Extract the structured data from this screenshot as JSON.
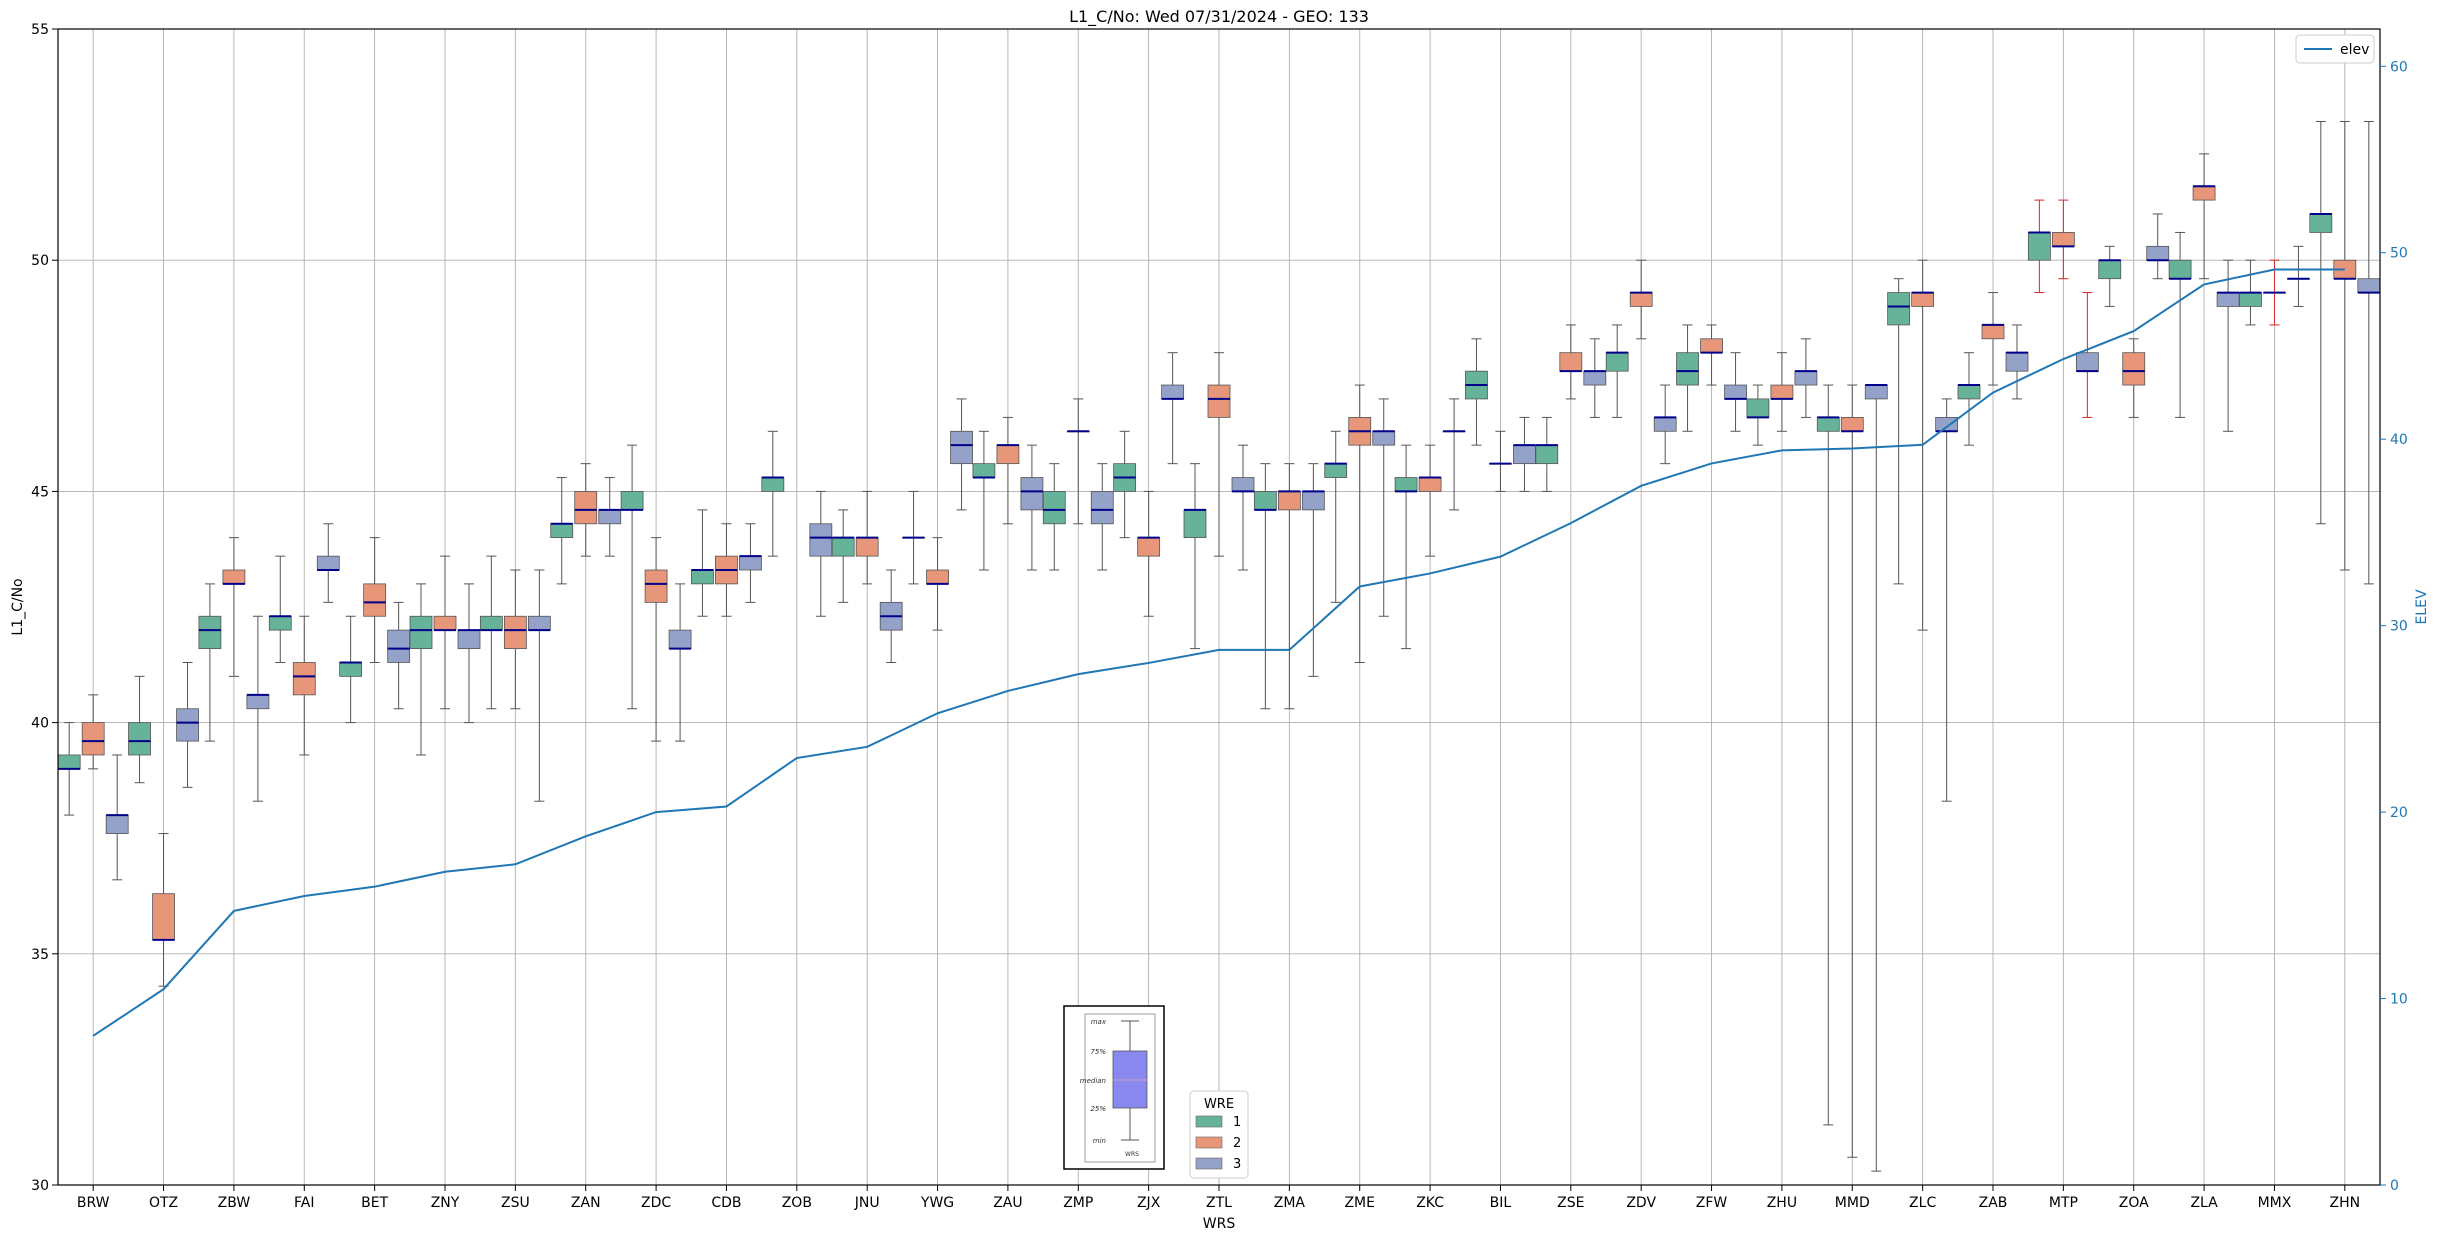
{
  "chart_data": {
    "type": "box",
    "title": "L1_C/No: Wed 07/31/2024 - GEO: 133",
    "xlabel": "WRS",
    "ylabel": "L1_C/No",
    "y2label": "ELEV",
    "ylim": [
      30,
      55
    ],
    "y2lim": [
      0,
      62
    ],
    "yticks": [
      30,
      35,
      40,
      45,
      50,
      55
    ],
    "y2ticks": [
      0,
      10,
      20,
      30,
      40,
      50,
      60
    ],
    "grid": true,
    "categories": [
      "BRW",
      "OTZ",
      "ZBW",
      "FAI",
      "BET",
      "ZNY",
      "ZSU",
      "ZAN",
      "ZDC",
      "CDB",
      "ZOB",
      "JNU",
      "YWG",
      "ZAU",
      "ZMP",
      "ZJX",
      "ZTL",
      "ZMA",
      "ZME",
      "ZKC",
      "BIL",
      "ZSE",
      "ZDV",
      "ZFW",
      "ZHU",
      "MMD",
      "ZLC",
      "ZAB",
      "MTP",
      "ZOA",
      "ZLA",
      "MMX",
      "ZHN"
    ],
    "legend_wre": {
      "title": "WRE",
      "placement": "bottom-center",
      "items": [
        {
          "label": "1",
          "color": "#66b39a"
        },
        {
          "label": "2",
          "color": "#e8967a"
        },
        {
          "label": "3",
          "color": "#94a1c8"
        }
      ]
    },
    "legend_line": {
      "label": "elev",
      "placement": "top-right",
      "color": "#1f77b4"
    },
    "box_key": {
      "labels": [
        "max",
        "75%",
        "median",
        "25%",
        "min"
      ],
      "xlabel": "WRS",
      "fill": "#8888ee"
    },
    "elev": [
      8,
      10.5,
      14.7,
      15.5,
      16,
      16.8,
      17.2,
      18.7,
      20,
      20.3,
      22.9,
      23.5,
      25.3,
      26.5,
      27.4,
      28,
      28.7,
      28.7,
      32.1,
      32.8,
      33.7,
      35.5,
      37.5,
      38.7,
      39.4,
      39.5,
      39.7,
      42.5,
      44.3,
      45.8,
      48.3,
      49.1,
      49.1
    ],
    "series": [
      {
        "name": "1",
        "color": "#66b39a",
        "boxes": [
          {
            "cat": "BRW",
            "min": 38.0,
            "q1": 39.0,
            "med": 39.0,
            "q3": 39.3,
            "max": 40.0
          },
          {
            "cat": "OTZ",
            "min": 38.7,
            "q1": 39.3,
            "med": 39.6,
            "q3": 40.0,
            "max": 41.0
          },
          {
            "cat": "ZBW",
            "min": 39.6,
            "q1": 41.6,
            "med": 42.0,
            "q3": 42.3,
            "max": 43.0
          },
          {
            "cat": "FAI",
            "min": 41.3,
            "q1": 42.0,
            "med": 42.3,
            "q3": 42.3,
            "max": 43.6
          },
          {
            "cat": "BET",
            "min": 40.0,
            "q1": 41.0,
            "med": 41.3,
            "q3": 41.3,
            "max": 42.3
          },
          {
            "cat": "ZNY",
            "min": 39.3,
            "q1": 41.6,
            "med": 42.0,
            "q3": 42.3,
            "max": 43.0
          },
          {
            "cat": "ZSU",
            "min": 40.3,
            "q1": 42.0,
            "med": 42.0,
            "q3": 42.3,
            "max": 43.6
          },
          {
            "cat": "ZAN",
            "min": 43.0,
            "q1": 44.0,
            "med": 44.3,
            "q3": 44.3,
            "max": 45.3
          },
          {
            "cat": "ZDC",
            "min": 40.3,
            "q1": 44.6,
            "med": 44.6,
            "q3": 45.0,
            "max": 46.0
          },
          {
            "cat": "CDB",
            "min": 42.3,
            "q1": 43.0,
            "med": 43.3,
            "q3": 43.3,
            "max": 44.6
          },
          {
            "cat": "ZOB",
            "min": 43.6,
            "q1": 45.0,
            "med": 45.3,
            "q3": 45.3,
            "max": 46.3
          },
          {
            "cat": "JNU",
            "min": 42.6,
            "q1": 43.6,
            "med": 44.0,
            "q3": 44.0,
            "max": 44.6
          },
          {
            "cat": "YWG",
            "min": 43.0,
            "q1": 44.0,
            "med": 44.0,
            "q3": 44.0,
            "max": 45.0
          },
          {
            "cat": "ZAU",
            "min": 43.3,
            "q1": 45.3,
            "med": 45.3,
            "q3": 45.6,
            "max": 46.3
          },
          {
            "cat": "ZMP",
            "min": 43.3,
            "q1": 44.3,
            "med": 44.6,
            "q3": 45.0,
            "max": 45.6
          },
          {
            "cat": "ZJX",
            "min": 44.0,
            "q1": 45.0,
            "med": 45.3,
            "q3": 45.6,
            "max": 46.3
          },
          {
            "cat": "ZTL",
            "min": 41.6,
            "q1": 44.0,
            "med": 44.6,
            "q3": 44.6,
            "max": 45.6
          },
          {
            "cat": "ZMA",
            "min": 40.3,
            "q1": 44.6,
            "med": 44.6,
            "q3": 45.0,
            "max": 45.6
          },
          {
            "cat": "ZME",
            "min": 42.6,
            "q1": 45.3,
            "med": 45.6,
            "q3": 45.6,
            "max": 46.3
          },
          {
            "cat": "ZKC",
            "min": 41.6,
            "q1": 45.0,
            "med": 45.0,
            "q3": 45.3,
            "max": 46.0
          },
          {
            "cat": "BIL",
            "min": 46.0,
            "q1": 47.0,
            "med": 47.3,
            "q3": 47.6,
            "max": 48.3
          },
          {
            "cat": "ZSE",
            "min": 45.0,
            "q1": 45.6,
            "med": 46.0,
            "q3": 46.0,
            "max": 46.6
          },
          {
            "cat": "ZDV",
            "min": 46.6,
            "q1": 47.6,
            "med": 48.0,
            "q3": 48.0,
            "max": 48.6
          },
          {
            "cat": "ZFW",
            "min": 46.3,
            "q1": 47.3,
            "med": 47.6,
            "q3": 48.0,
            "max": 48.6
          },
          {
            "cat": "ZHU",
            "min": 46.0,
            "q1": 46.6,
            "med": 46.6,
            "q3": 47.0,
            "max": 47.3
          },
          {
            "cat": "MMD",
            "min": 31.3,
            "q1": 46.3,
            "med": 46.6,
            "q3": 46.6,
            "max": 47.3
          },
          {
            "cat": "ZLC",
            "min": 43.0,
            "q1": 48.6,
            "med": 49.0,
            "q3": 49.3,
            "max": 49.6
          },
          {
            "cat": "ZAB",
            "min": 46.0,
            "q1": 47.0,
            "med": 47.3,
            "q3": 47.3,
            "max": 48.0
          },
          {
            "cat": "MTP",
            "min": 49.3,
            "q1": 50.0,
            "med": 50.6,
            "q3": 50.6,
            "max": 51.3,
            "whisker_color": "#d62728"
          },
          {
            "cat": "ZOA",
            "min": 49.0,
            "q1": 49.6,
            "med": 50.0,
            "q3": 50.0,
            "max": 50.3
          },
          {
            "cat": "ZLA",
            "min": 46.6,
            "q1": 49.6,
            "med": 49.6,
            "q3": 50.0,
            "max": 50.6
          },
          {
            "cat": "MMX",
            "min": 48.6,
            "q1": 49.0,
            "med": 49.3,
            "q3": 49.3,
            "max": 50.0
          },
          {
            "cat": "ZHN",
            "min": 44.3,
            "q1": 50.6,
            "med": 51.0,
            "q3": 51.0,
            "max": 53.0
          }
        ]
      },
      {
        "name": "2",
        "color": "#e8967a",
        "boxes": [
          {
            "cat": "BRW",
            "min": 39.0,
            "q1": 39.3,
            "med": 39.6,
            "q3": 40.0,
            "max": 40.6
          },
          {
            "cat": "OTZ",
            "min": 34.3,
            "q1": 35.3,
            "med": 35.3,
            "q3": 36.3,
            "max": 37.6
          },
          {
            "cat": "ZBW",
            "min": 41.0,
            "q1": 43.0,
            "med": 43.0,
            "q3": 43.3,
            "max": 44.0
          },
          {
            "cat": "FAI",
            "min": 39.3,
            "q1": 40.6,
            "med": 41.0,
            "q3": 41.3,
            "max": 42.3
          },
          {
            "cat": "BET",
            "min": 41.3,
            "q1": 42.3,
            "med": 42.6,
            "q3": 43.0,
            "max": 44.0
          },
          {
            "cat": "ZNY",
            "min": 40.3,
            "q1": 42.0,
            "med": 42.0,
            "q3": 42.3,
            "max": 43.6
          },
          {
            "cat": "ZSU",
            "min": 40.3,
            "q1": 41.6,
            "med": 42.0,
            "q3": 42.3,
            "max": 43.3
          },
          {
            "cat": "ZAN",
            "min": 43.6,
            "q1": 44.3,
            "med": 44.6,
            "q3": 45.0,
            "max": 45.6
          },
          {
            "cat": "ZDC",
            "min": 39.6,
            "q1": 42.6,
            "med": 43.0,
            "q3": 43.3,
            "max": 44.0
          },
          {
            "cat": "CDB",
            "min": 42.3,
            "q1": 43.0,
            "med": 43.3,
            "q3": 43.6,
            "max": 44.3
          },
          {
            "cat": "JNU",
            "min": 43.0,
            "q1": 43.6,
            "med": 44.0,
            "q3": 44.0,
            "max": 45.0
          },
          {
            "cat": "YWG",
            "min": 42.0,
            "q1": 43.0,
            "med": 43.0,
            "q3": 43.3,
            "max": 44.0
          },
          {
            "cat": "ZAU",
            "min": 44.3,
            "q1": 45.6,
            "med": 46.0,
            "q3": 46.0,
            "max": 46.6
          },
          {
            "cat": "ZMP",
            "min": 44.3,
            "q1": 46.3,
            "med": 46.3,
            "q3": 46.3,
            "max": 47.0
          },
          {
            "cat": "ZJX",
            "min": 42.3,
            "q1": 43.6,
            "med": 44.0,
            "q3": 44.0,
            "max": 45.0
          },
          {
            "cat": "ZTL",
            "min": 43.6,
            "q1": 46.6,
            "med": 47.0,
            "q3": 47.3,
            "max": 48.0
          },
          {
            "cat": "ZMA",
            "min": 40.3,
            "q1": 44.6,
            "med": 45.0,
            "q3": 45.0,
            "max": 45.6
          },
          {
            "cat": "ZME",
            "min": 41.3,
            "q1": 46.0,
            "med": 46.3,
            "q3": 46.6,
            "max": 47.3
          },
          {
            "cat": "ZKC",
            "min": 43.6,
            "q1": 45.0,
            "med": 45.3,
            "q3": 45.3,
            "max": 46.0
          },
          {
            "cat": "BIL",
            "min": 45.0,
            "q1": 45.6,
            "med": 45.6,
            "q3": 45.6,
            "max": 46.3
          },
          {
            "cat": "ZSE",
            "min": 47.0,
            "q1": 47.6,
            "med": 47.6,
            "q3": 48.0,
            "max": 48.6
          },
          {
            "cat": "ZDV",
            "min": 48.3,
            "q1": 49.0,
            "med": 49.3,
            "q3": 49.3,
            "max": 50.0
          },
          {
            "cat": "ZFW",
            "min": 47.3,
            "q1": 48.0,
            "med": 48.0,
            "q3": 48.3,
            "max": 48.6
          },
          {
            "cat": "ZHU",
            "min": 46.3,
            "q1": 47.0,
            "med": 47.0,
            "q3": 47.3,
            "max": 48.0
          },
          {
            "cat": "MMD",
            "min": 30.6,
            "q1": 46.3,
            "med": 46.3,
            "q3": 46.6,
            "max": 47.3
          },
          {
            "cat": "ZLC",
            "min": 42.0,
            "q1": 49.0,
            "med": 49.3,
            "q3": 49.3,
            "max": 50.0
          },
          {
            "cat": "ZAB",
            "min": 47.3,
            "q1": 48.3,
            "med": 48.6,
            "q3": 48.6,
            "max": 49.3
          },
          {
            "cat": "MTP",
            "min": 49.6,
            "q1": 50.3,
            "med": 50.3,
            "q3": 50.6,
            "max": 51.3,
            "whisker_color": "#d62728"
          },
          {
            "cat": "ZOA",
            "min": 46.6,
            "q1": 47.3,
            "med": 47.6,
            "q3": 48.0,
            "max": 48.3
          },
          {
            "cat": "ZLA",
            "min": 49.6,
            "q1": 51.3,
            "med": 51.6,
            "q3": 51.6,
            "max": 52.3
          },
          {
            "cat": "MMX",
            "min": 48.6,
            "q1": 49.3,
            "med": 49.3,
            "q3": 49.3,
            "max": 50.0,
            "whisker_color": "#d62728"
          },
          {
            "cat": "ZHN",
            "min": 43.3,
            "q1": 49.6,
            "med": 49.6,
            "q3": 50.0,
            "max": 53.0
          }
        ]
      },
      {
        "name": "3",
        "color": "#94a1c8",
        "boxes": [
          {
            "cat": "BRW",
            "min": 36.6,
            "q1": 37.6,
            "med": 38.0,
            "q3": 38.0,
            "max": 39.3
          },
          {
            "cat": "OTZ",
            "min": 38.6,
            "q1": 39.6,
            "med": 40.0,
            "q3": 40.3,
            "max": 41.3
          },
          {
            "cat": "ZBW",
            "min": 38.3,
            "q1": 40.3,
            "med": 40.6,
            "q3": 40.6,
            "max": 42.3
          },
          {
            "cat": "FAI",
            "min": 42.6,
            "q1": 43.3,
            "med": 43.3,
            "q3": 43.6,
            "max": 44.3
          },
          {
            "cat": "BET",
            "min": 40.3,
            "q1": 41.3,
            "med": 41.6,
            "q3": 42.0,
            "max": 42.6
          },
          {
            "cat": "ZNY",
            "min": 40.0,
            "q1": 41.6,
            "med": 42.0,
            "q3": 42.0,
            "max": 43.0
          },
          {
            "cat": "ZSU",
            "min": 38.3,
            "q1": 42.0,
            "med": 42.0,
            "q3": 42.3,
            "max": 43.3
          },
          {
            "cat": "ZAN",
            "min": 43.6,
            "q1": 44.3,
            "med": 44.6,
            "q3": 44.6,
            "max": 45.3
          },
          {
            "cat": "ZDC",
            "min": 39.6,
            "q1": 41.6,
            "med": 41.6,
            "q3": 42.0,
            "max": 43.0
          },
          {
            "cat": "CDB",
            "min": 42.6,
            "q1": 43.3,
            "med": 43.6,
            "q3": 43.6,
            "max": 44.3
          },
          {
            "cat": "ZOB",
            "min": 42.3,
            "q1": 43.6,
            "med": 44.0,
            "q3": 44.3,
            "max": 45.0
          },
          {
            "cat": "JNU",
            "min": 41.3,
            "q1": 42.0,
            "med": 42.3,
            "q3": 42.6,
            "max": 43.3
          },
          {
            "cat": "YWG",
            "min": 44.6,
            "q1": 45.6,
            "med": 46.0,
            "q3": 46.3,
            "max": 47.0
          },
          {
            "cat": "ZAU",
            "min": 43.3,
            "q1": 44.6,
            "med": 45.0,
            "q3": 45.3,
            "max": 46.0
          },
          {
            "cat": "ZMP",
            "min": 43.3,
            "q1": 44.3,
            "med": 44.6,
            "q3": 45.0,
            "max": 45.6
          },
          {
            "cat": "ZJX",
            "min": 45.6,
            "q1": 47.0,
            "med": 47.0,
            "q3": 47.3,
            "max": 48.0
          },
          {
            "cat": "ZTL",
            "min": 43.3,
            "q1": 45.0,
            "med": 45.0,
            "q3": 45.3,
            "max": 46.0
          },
          {
            "cat": "ZMA",
            "min": 41.0,
            "q1": 44.6,
            "med": 45.0,
            "q3": 45.0,
            "max": 45.6
          },
          {
            "cat": "ZME",
            "min": 42.3,
            "q1": 46.0,
            "med": 46.3,
            "q3": 46.3,
            "max": 47.0
          },
          {
            "cat": "ZKC",
            "min": 44.6,
            "q1": 46.3,
            "med": 46.3,
            "q3": 46.3,
            "max": 47.0
          },
          {
            "cat": "BIL",
            "min": 45.0,
            "q1": 45.6,
            "med": 46.0,
            "q3": 46.0,
            "max": 46.6
          },
          {
            "cat": "ZSE",
            "min": 46.6,
            "q1": 47.3,
            "med": 47.6,
            "q3": 47.6,
            "max": 48.3
          },
          {
            "cat": "ZDV",
            "min": 45.6,
            "q1": 46.3,
            "med": 46.6,
            "q3": 46.6,
            "max": 47.3
          },
          {
            "cat": "ZFW",
            "min": 46.3,
            "q1": 47.0,
            "med": 47.0,
            "q3": 47.3,
            "max": 48.0
          },
          {
            "cat": "ZHU",
            "min": 46.6,
            "q1": 47.3,
            "med": 47.6,
            "q3": 47.6,
            "max": 48.3
          },
          {
            "cat": "MMD",
            "min": 30.3,
            "q1": 47.0,
            "med": 47.3,
            "q3": 47.3,
            "max": 47.3
          },
          {
            "cat": "ZLC",
            "min": 38.3,
            "q1": 46.3,
            "med": 46.3,
            "q3": 46.6,
            "max": 47.0
          },
          {
            "cat": "ZAB",
            "min": 47.0,
            "q1": 47.6,
            "med": 48.0,
            "q3": 48.0,
            "max": 48.6
          },
          {
            "cat": "MTP",
            "min": 46.6,
            "q1": 47.6,
            "med": 47.6,
            "q3": 48.0,
            "max": 49.3,
            "whisker_color": "#d62728"
          },
          {
            "cat": "ZOA",
            "min": 49.6,
            "q1": 50.0,
            "med": 50.0,
            "q3": 50.3,
            "max": 51.0
          },
          {
            "cat": "ZLA",
            "min": 46.3,
            "q1": 49.0,
            "med": 49.3,
            "q3": 49.3,
            "max": 50.0
          },
          {
            "cat": "MMX",
            "min": 49.0,
            "q1": 49.6,
            "med": 49.6,
            "q3": 49.6,
            "max": 50.3
          },
          {
            "cat": "ZHN",
            "min": 43.0,
            "q1": 49.3,
            "med": 49.3,
            "q3": 49.6,
            "max": 53.0
          }
        ]
      }
    ]
  }
}
